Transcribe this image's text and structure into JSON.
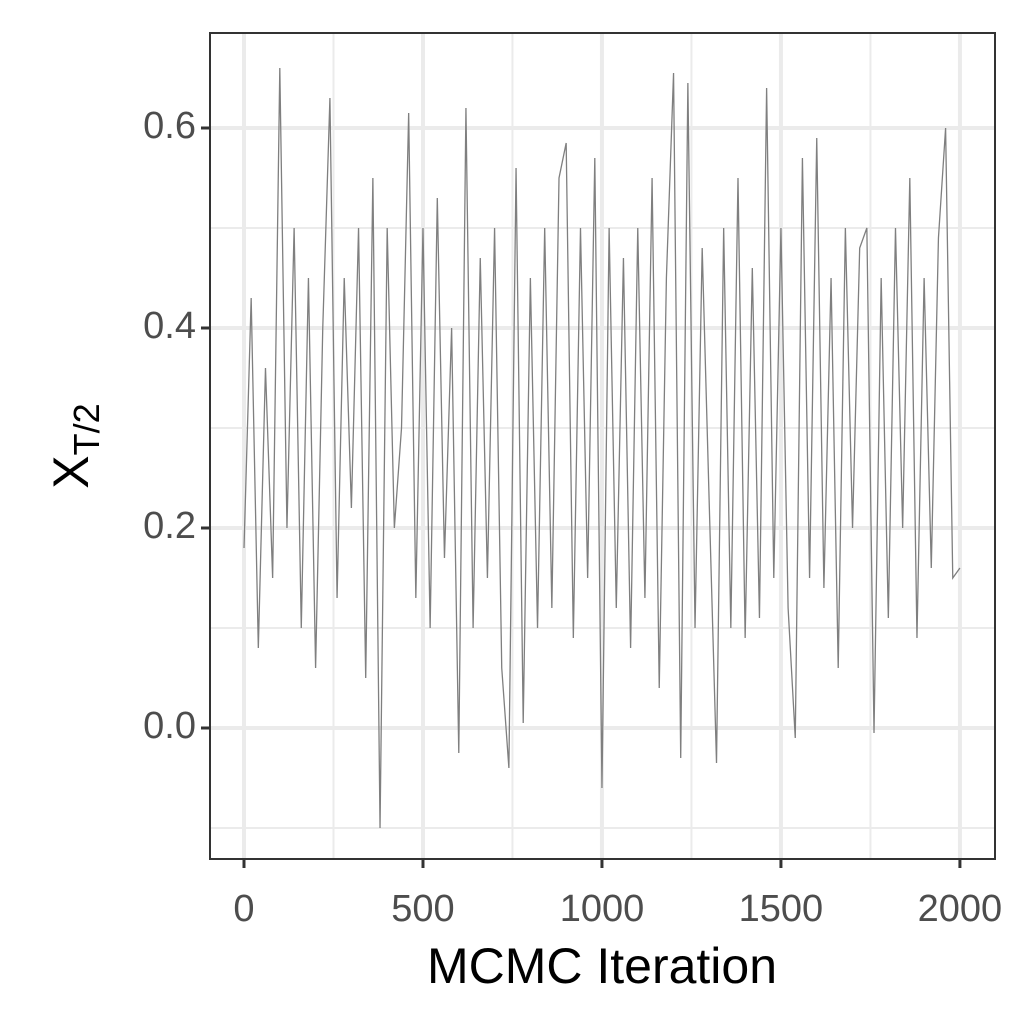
{
  "chart_data": {
    "type": "line",
    "xlabel": "MCMC Iteration",
    "ylabel": "X",
    "ylabel_sub": "T/2",
    "xlim": [
      -95,
      2098
    ],
    "ylim": [
      -0.131,
      0.695
    ],
    "xticks": [
      0,
      500,
      1000,
      1500,
      2000
    ],
    "yticks": [
      {
        "value": 0,
        "label": "0.0"
      },
      {
        "value": 0.2,
        "label": "0.2"
      },
      {
        "value": 0.4,
        "label": "0.4"
      },
      {
        "value": 0.6,
        "label": "0.6"
      }
    ],
    "xminorgrid": [
      250,
      750,
      1250,
      1750
    ],
    "yminorgrid": [
      -0.1,
      0.1,
      0.3,
      0.5
    ],
    "grid": true,
    "color": "#7f7f7f",
    "x": [
      0,
      20,
      40,
      60,
      80,
      100,
      120,
      140,
      160,
      180,
      200,
      220,
      240,
      260,
      280,
      300,
      320,
      340,
      360,
      380,
      400,
      420,
      440,
      460,
      480,
      500,
      520,
      540,
      560,
      580,
      600,
      620,
      640,
      660,
      680,
      700,
      720,
      740,
      760,
      780,
      800,
      820,
      840,
      860,
      880,
      900,
      920,
      940,
      960,
      980,
      1000,
      1020,
      1040,
      1060,
      1080,
      1100,
      1120,
      1140,
      1160,
      1180,
      1200,
      1220,
      1240,
      1260,
      1280,
      1300,
      1320,
      1340,
      1360,
      1380,
      1400,
      1420,
      1440,
      1460,
      1480,
      1500,
      1520,
      1540,
      1560,
      1580,
      1600,
      1620,
      1640,
      1660,
      1680,
      1700,
      1720,
      1740,
      1760,
      1780,
      1800,
      1820,
      1840,
      1860,
      1880,
      1900,
      1920,
      1940,
      1960,
      1980,
      2000
    ],
    "values": [
      0.18,
      0.43,
      0.08,
      0.36,
      0.15,
      0.66,
      0.2,
      0.5,
      0.1,
      0.45,
      0.06,
      0.4,
      0.63,
      0.13,
      0.45,
      0.22,
      0.5,
      0.05,
      0.55,
      -0.1,
      0.5,
      0.2,
      0.3,
      0.615,
      0.13,
      0.5,
      0.1,
      0.53,
      0.17,
      0.4,
      -0.025,
      0.62,
      0.1,
      0.47,
      0.15,
      0.5,
      0.06,
      -0.04,
      0.56,
      0.005,
      0.45,
      0.1,
      0.5,
      0.12,
      0.55,
      0.585,
      0.09,
      0.5,
      0.15,
      0.57,
      -0.06,
      0.5,
      0.12,
      0.47,
      0.08,
      0.5,
      0.13,
      0.55,
      0.04,
      0.45,
      0.655,
      -0.03,
      0.645,
      0.1,
      0.48,
      0.22,
      -0.035,
      0.5,
      0.1,
      0.55,
      0.09,
      0.46,
      0.11,
      0.64,
      0.15,
      0.5,
      0.12,
      -0.01,
      0.57,
      0.15,
      0.59,
      0.14,
      0.45,
      0.06,
      0.5,
      0.2,
      0.48,
      0.5,
      -0.005,
      0.45,
      0.11,
      0.5,
      0.2,
      0.55,
      0.09,
      0.45,
      0.16,
      0.49,
      0.6,
      0.15,
      0.16
    ]
  }
}
